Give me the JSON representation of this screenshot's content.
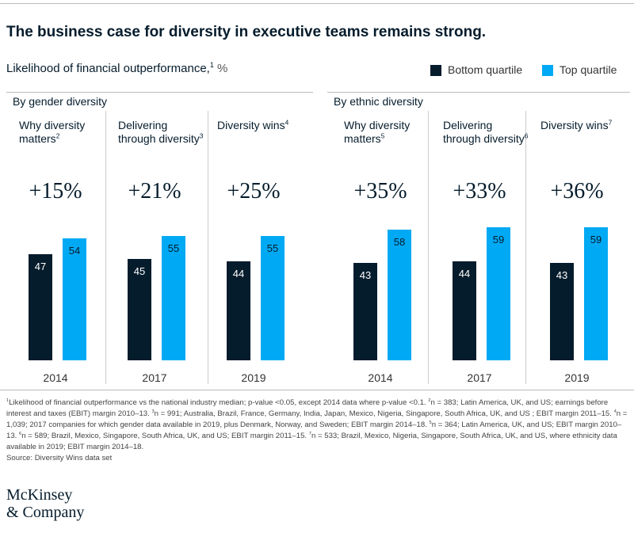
{
  "chart_data": {
    "type": "bar",
    "title": "The business case for diversity in executive teams remains strong.",
    "subtitle": "Likelihood of financial outperformance,",
    "subtitle_note": "1",
    "unit": "%",
    "categories": [
      "2014",
      "2017",
      "2019",
      "2014",
      "2017",
      "2019"
    ],
    "series": [
      {
        "name": "Bottom quartile",
        "color": "#051c2c",
        "values": [
          47,
          45,
          44,
          43,
          44,
          43
        ]
      },
      {
        "name": "Top quartile",
        "color": "#00a9f4",
        "values": [
          54,
          55,
          55,
          58,
          59,
          59
        ]
      }
    ],
    "groups": [
      {
        "title": "By gender diversity",
        "panels": [
          {
            "label": "Why diversity matters",
            "note": "2",
            "change": "+15%"
          },
          {
            "label": "Delivering through diversity",
            "note": "3",
            "change": "+21%"
          },
          {
            "label": "Diversity wins",
            "note": "4",
            "change": "+25%"
          }
        ]
      },
      {
        "title": "By ethnic diversity",
        "panels": [
          {
            "label": "Why diversity matters",
            "note": "5",
            "change": "+35%"
          },
          {
            "label": "Delivering through diversity",
            "note": "6",
            "change": "+33%"
          },
          {
            "label": "Diversity wins",
            "note": "7",
            "change": "+36%"
          }
        ]
      }
    ],
    "footnotes": [
      {
        "mark": "1",
        "text": "Likelihood of financial outperformance vs the national industry median; p-value <0.05, except 2014 data where p-value <0.1."
      },
      {
        "mark": "2",
        "text": "n = 383; Latin America, UK, and US; earnings before interest and taxes (EBIT) margin 2010–13."
      },
      {
        "mark": "3",
        "text": "n = 991; Australia, Brazil, France, Germany, India, Japan, Mexico, Nigeria, Singapore, South Africa, UK, and US ; EBIT margin 2011–15."
      },
      {
        "mark": "4",
        "text": "n = 1,039; 2017 companies for which gender data available in 2019, plus Denmark, Norway, and Sweden;  EBIT margin 2014–18."
      },
      {
        "mark": "5",
        "text": "n = 364; Latin America, UK, and US; EBIT margin 2010–13."
      },
      {
        "mark": "6",
        "text": "n = 589; Brazil, Mexico, Singapore, South Africa, UK, and US; EBIT margin 2011–15."
      },
      {
        "mark": "7",
        "text": "n = 533; Brazil, Mexico, Nigeria, Singapore, South Africa, UK, and US, where ethnicity data available in 2019; EBIT margin 2014–18."
      }
    ],
    "source": "Source: Diversity Wins data set",
    "logo": [
      "McKinsey",
      "& Company"
    ]
  }
}
